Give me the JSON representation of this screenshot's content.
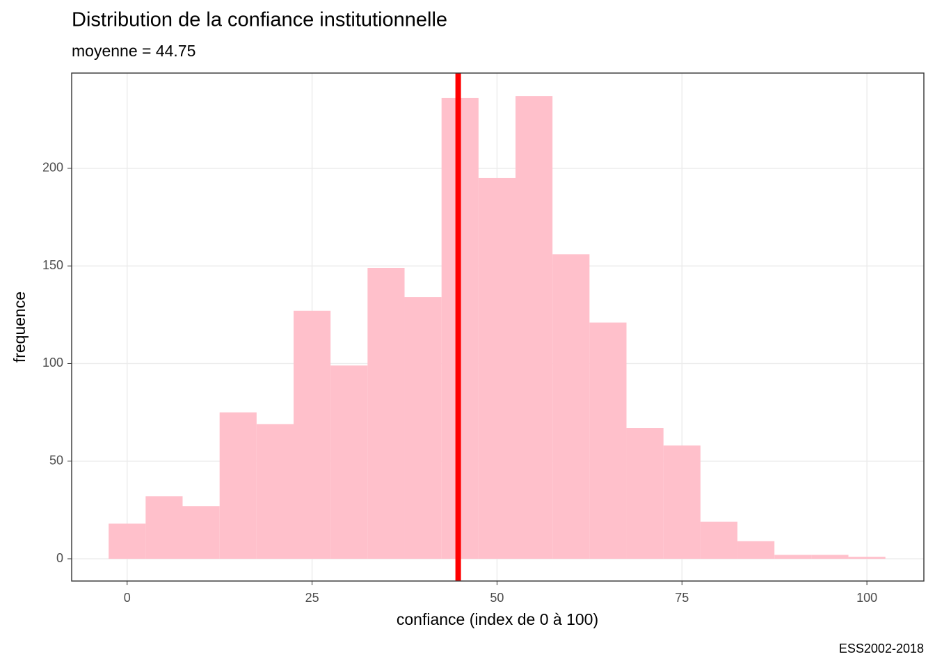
{
  "chart_data": {
    "type": "histogram",
    "title": "Distribution de la confiance institutionnelle",
    "subtitle": "moyenne = 44.75",
    "x_label": "confiance (index de 0 à 100)",
    "y_label": "frequence",
    "caption": "ESS2002-2018",
    "bins": [
      -2.5,
      2.5,
      7.5,
      12.5,
      17.5,
      22.5,
      27.5,
      32.5,
      37.5,
      42.5,
      47.5,
      52.5,
      57.5,
      62.5,
      67.5,
      72.5,
      77.5,
      82.5,
      87.5,
      92.5,
      97.5,
      102.5
    ],
    "values": [
      18,
      32,
      27,
      75,
      69,
      127,
      99,
      149,
      134,
      236,
      195,
      237,
      156,
      121,
      67,
      58,
      19,
      9,
      2,
      2,
      1
    ],
    "color": "#ffc0cb",
    "mean": 44.75,
    "mean_color": "#ff0000",
    "xlim": [
      -7.5,
      107.7
    ],
    "ylim": [
      -11.4,
      248.8
    ],
    "xticks": [
      0,
      25,
      50,
      75,
      100
    ],
    "yticks": [
      0,
      50,
      100,
      150,
      200
    ],
    "grid": true
  }
}
